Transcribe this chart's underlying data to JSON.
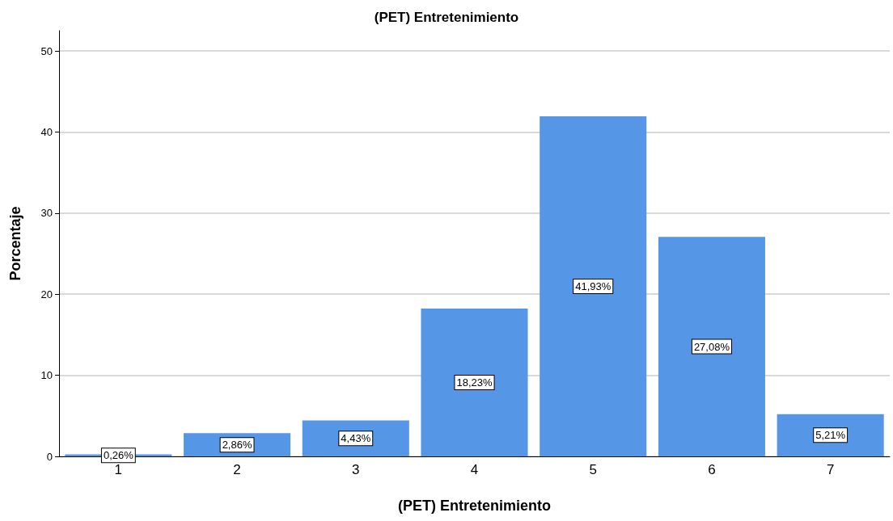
{
  "chart_data": {
    "type": "bar",
    "title": "(PET) Entretenimiento",
    "xlabel": "(PET) Entretenimiento",
    "ylabel": "Porcentaje",
    "categories": [
      "1",
      "2",
      "3",
      "4",
      "5",
      "6",
      "7"
    ],
    "values": [
      0.26,
      2.86,
      4.43,
      18.23,
      41.93,
      27.08,
      5.21
    ],
    "value_labels": [
      "0,26%",
      "2,86%",
      "4,43%",
      "18,23%",
      "41,93%",
      "27,08%",
      "5,21%"
    ],
    "color": "#5596e6",
    "ylim": [
      0,
      52.5
    ],
    "yticks": [
      0,
      10,
      20,
      30,
      40,
      50
    ],
    "grid": "y"
  }
}
